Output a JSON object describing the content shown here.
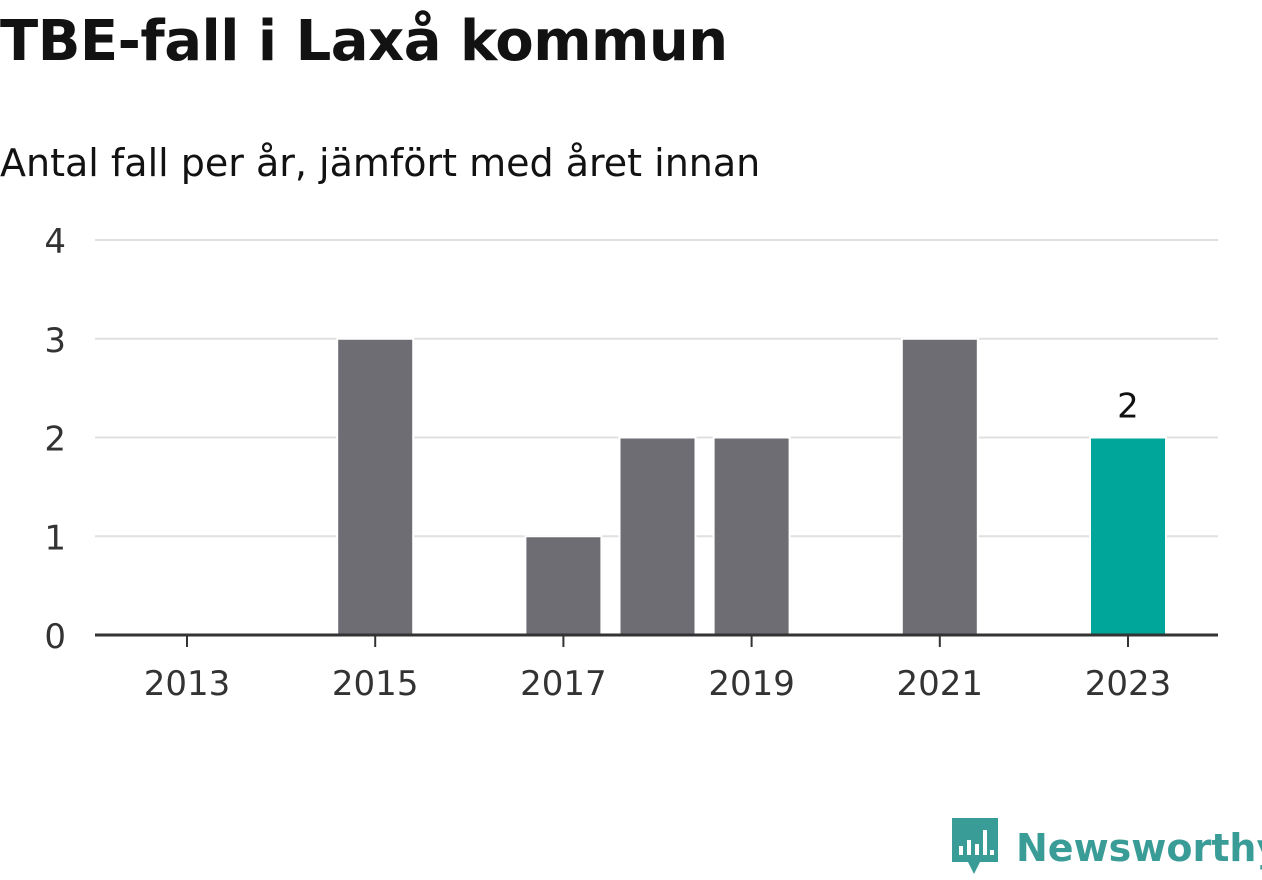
{
  "chart_data": {
    "type": "bar",
    "title": "TBE-fall i Laxå kommun",
    "subtitle": "Antal fall per år, jämfört med året innan",
    "xlabel": "",
    "ylabel": "",
    "categories": [
      "2013",
      "2014",
      "2015",
      "2016",
      "2017",
      "2018",
      "2019",
      "2020",
      "2021",
      "2022",
      "2023"
    ],
    "values": [
      0,
      0,
      3,
      0,
      1,
      2,
      2,
      0,
      3,
      0,
      2
    ],
    "x_tick_labels": [
      "2013",
      "2015",
      "2017",
      "2019",
      "2021",
      "2023"
    ],
    "y_ticks": [
      0,
      1,
      2,
      3,
      4
    ],
    "ylim": [
      0,
      4
    ],
    "grid": true,
    "highlight_category": "2023",
    "data_labels": [
      {
        "category": "2023",
        "text": "2"
      }
    ],
    "colors": {
      "bar": "#6e6d74",
      "highlight": "#00a69a",
      "grid": "#e0e0e0",
      "axis": "#333333"
    }
  },
  "brand": {
    "name": "Newsworthy",
    "icon": "newsworthy-logo-icon",
    "color": "#3a9c96"
  }
}
